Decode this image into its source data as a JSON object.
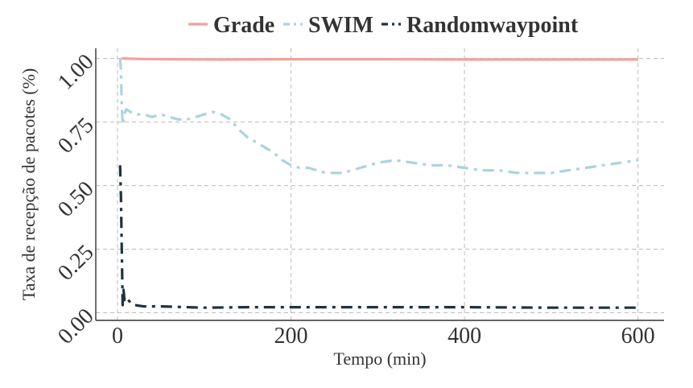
{
  "chart_data": {
    "type": "line",
    "title": "",
    "xlabel": "Tempo (min)",
    "ylabel": "Taxa de recepção de pacotes (%)",
    "xlim": [
      -25,
      630
    ],
    "ylim": [
      -0.03,
      1.04
    ],
    "x_ticks": [
      0,
      200,
      400,
      600
    ],
    "y_ticks": [
      0.0,
      0.25,
      0.5,
      0.75,
      1.0
    ],
    "x_tick_labels": [
      "0",
      "200",
      "400",
      "600"
    ],
    "y_tick_labels": [
      "0.00",
      "0.25",
      "0.50",
      "0.75",
      "1.00"
    ],
    "grid": true,
    "legend_position": "top",
    "series": [
      {
        "name": "Grade",
        "color": "#f4a09c",
        "dash": "solid",
        "x": [
          5,
          30,
          60,
          120,
          200,
          300,
          400,
          500,
          600
        ],
        "y": [
          1.0,
          0.998,
          0.997,
          0.996,
          0.997,
          0.997,
          0.996,
          0.996,
          0.996
        ]
      },
      {
        "name": "SWIM",
        "color": "#a9d4e0",
        "dash": "dashdot",
        "x": [
          3,
          4,
          5,
          6,
          8,
          10,
          15,
          20,
          30,
          40,
          50,
          60,
          70,
          80,
          90,
          100,
          110,
          120,
          130,
          140,
          150,
          160,
          170,
          180,
          190,
          200,
          210,
          220,
          230,
          240,
          250,
          260,
          280,
          300,
          320,
          340,
          360,
          380,
          400,
          420,
          440,
          460,
          480,
          500,
          520,
          540,
          560,
          580,
          600
        ],
        "y": [
          1.0,
          0.95,
          0.82,
          0.74,
          0.78,
          0.8,
          0.79,
          0.78,
          0.78,
          0.77,
          0.78,
          0.77,
          0.76,
          0.76,
          0.77,
          0.78,
          0.79,
          0.78,
          0.76,
          0.72,
          0.69,
          0.67,
          0.65,
          0.63,
          0.6,
          0.58,
          0.57,
          0.57,
          0.56,
          0.55,
          0.55,
          0.55,
          0.57,
          0.59,
          0.6,
          0.59,
          0.58,
          0.58,
          0.57,
          0.56,
          0.56,
          0.55,
          0.55,
          0.55,
          0.56,
          0.57,
          0.58,
          0.59,
          0.6
        ]
      },
      {
        "name": "Randomwaypoint",
        "color": "#1f333d",
        "dash": "dashdot",
        "x": [
          3,
          4,
          5,
          6,
          7,
          8,
          10,
          15,
          20,
          30,
          50,
          100,
          150,
          200,
          300,
          400,
          500,
          600
        ],
        "y": [
          0.58,
          0.45,
          0.25,
          0.03,
          0.09,
          0.05,
          0.06,
          0.04,
          0.03,
          0.025,
          0.025,
          0.02,
          0.022,
          0.022,
          0.022,
          0.022,
          0.02,
          0.02
        ]
      }
    ]
  }
}
